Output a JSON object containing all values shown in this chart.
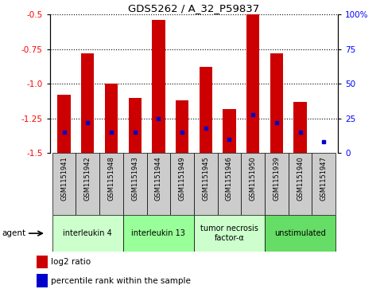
{
  "title": "GDS5262 / A_32_P59837",
  "samples": [
    "GSM1151941",
    "GSM1151942",
    "GSM1151948",
    "GSM1151943",
    "GSM1151944",
    "GSM1151949",
    "GSM1151945",
    "GSM1151946",
    "GSM1151950",
    "GSM1151939",
    "GSM1151940",
    "GSM1151947"
  ],
  "log2_ratio": [
    -1.08,
    -0.78,
    -1.0,
    -1.1,
    -0.54,
    -1.12,
    -0.88,
    -1.18,
    -0.5,
    -0.78,
    -1.13,
    -1.5
  ],
  "percentile_rank": [
    15,
    22,
    15,
    15,
    25,
    15,
    18,
    10,
    28,
    22,
    15,
    8
  ],
  "bar_color": "#cc0000",
  "dot_color": "#0000cc",
  "ylim_left": [
    -1.5,
    -0.5
  ],
  "ylim_right": [
    0,
    100
  ],
  "yticks_left": [
    -1.5,
    -1.25,
    -1.0,
    -0.75,
    -0.5
  ],
  "yticks_right": [
    0,
    25,
    50,
    75,
    100
  ],
  "groups": [
    {
      "label": "interleukin 4",
      "start": 0,
      "end": 2,
      "color": "#ccffcc"
    },
    {
      "label": "interleukin 13",
      "start": 3,
      "end": 5,
      "color": "#99ff99"
    },
    {
      "label": "tumor necrosis\nfactor-α",
      "start": 6,
      "end": 8,
      "color": "#ccffcc"
    },
    {
      "label": "unstimulated",
      "start": 9,
      "end": 11,
      "color": "#66dd66"
    }
  ],
  "agent_label": "agent",
  "legend_red": "log2 ratio",
  "legend_blue": "percentile rank within the sample",
  "bar_width": 0.55,
  "grid_color": "#000000",
  "sample_box_color": "#cccccc",
  "plot_bg": "#ffffff"
}
